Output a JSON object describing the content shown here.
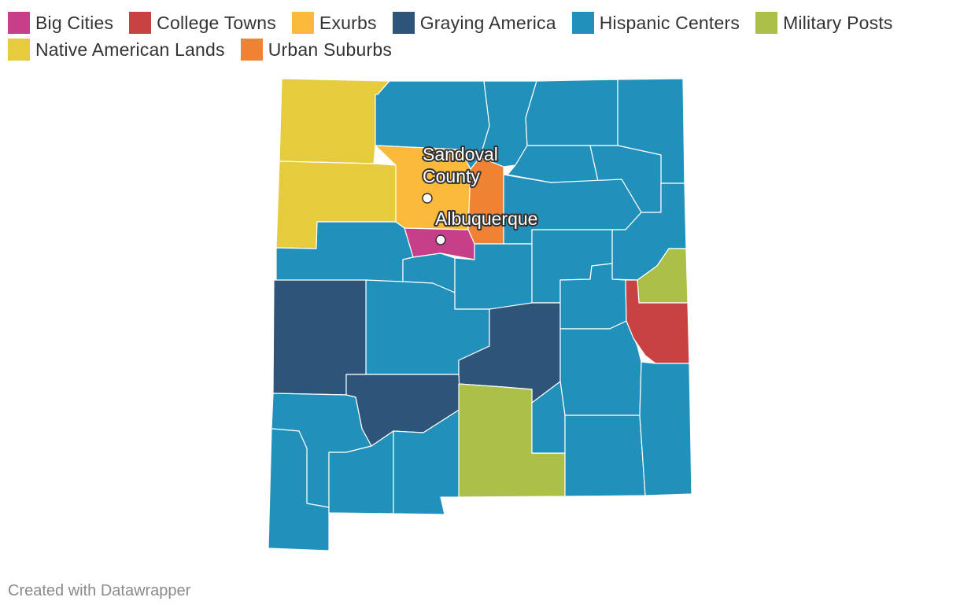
{
  "legend": [
    {
      "label": "Big Cities",
      "color": "#c83f89"
    },
    {
      "label": "College Towns",
      "color": "#c84244"
    },
    {
      "label": "Exurbs",
      "color": "#fbb93c"
    },
    {
      "label": "Graying America",
      "color": "#2e5579"
    },
    {
      "label": "Hispanic Centers",
      "color": "#2190bb"
    },
    {
      "label": "Military Posts",
      "color": "#acbf47"
    },
    {
      "label": "Native American Lands",
      "color": "#e7cb3e"
    },
    {
      "label": "Urban Suburbs",
      "color": "#ef8233"
    }
  ],
  "labels": {
    "sandoval_line1": "Sandoval",
    "sandoval_line2": "County",
    "albuquerque": "Albuquerque"
  },
  "credit": "Created with Datawrapper"
}
